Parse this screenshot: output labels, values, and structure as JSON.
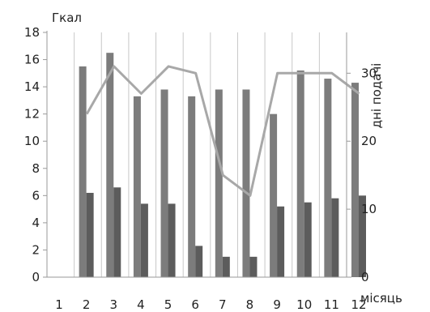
{
  "chart_data": {
    "type": "bar",
    "title": "",
    "ylabel": "Гкал",
    "y2label": "дні подачі",
    "xlabel": "місяць",
    "categories": [
      "1",
      "2",
      "3",
      "4",
      "5",
      "6",
      "7",
      "8",
      "9",
      "10",
      "11",
      "12"
    ],
    "ylim": [
      0,
      18
    ],
    "yticks": [
      "0",
      "2",
      "4",
      "6",
      "8",
      "10",
      "12",
      "14",
      "16",
      "18"
    ],
    "y2lim": [
      0,
      36
    ],
    "y2ticks": [
      "0",
      "10",
      "20",
      "30"
    ],
    "grid": "vertical",
    "colors": {
      "series1": "#7c7c7c",
      "series2": "#5c5c5c",
      "line": "#a8a8a8",
      "grid": "#c8c8c8",
      "axis": "#9a9a9a"
    },
    "series": [
      {
        "type": "bar",
        "axis": "left",
        "values": [
          null,
          15.5,
          16.5,
          13.3,
          13.8,
          13.3,
          13.8,
          13.8,
          12.0,
          15.2,
          14.6,
          14.3
        ]
      },
      {
        "type": "bar",
        "axis": "left",
        "values": [
          null,
          6.2,
          6.6,
          5.4,
          5.4,
          2.3,
          1.5,
          1.5,
          5.2,
          5.5,
          5.8,
          6.0
        ]
      },
      {
        "type": "line",
        "axis": "right",
        "values": [
          null,
          24,
          31,
          27,
          31,
          30,
          15,
          12,
          30,
          30,
          30,
          27
        ]
      }
    ]
  }
}
